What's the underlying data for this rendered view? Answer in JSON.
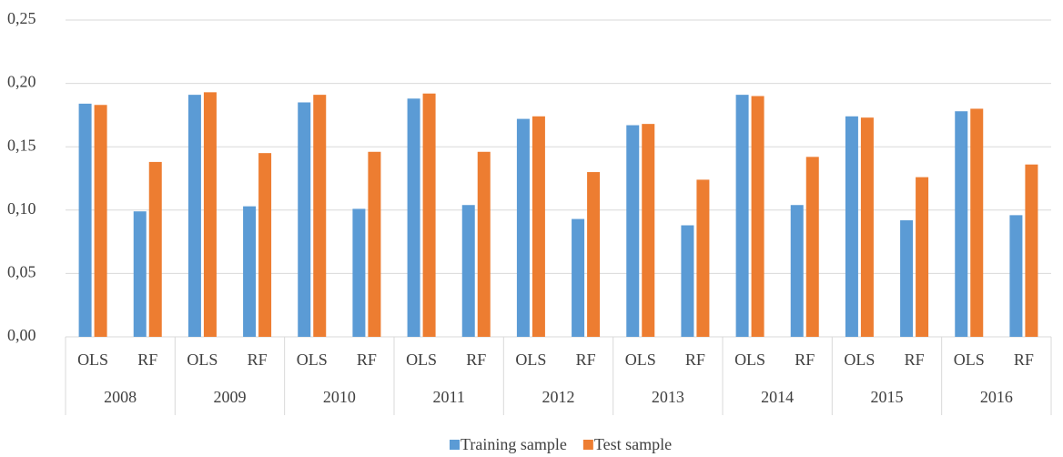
{
  "chart_data": {
    "type": "bar",
    "categories": [
      "OLS",
      "RF",
      "OLS",
      "RF",
      "OLS",
      "RF",
      "OLS",
      "RF",
      "OLS",
      "RF",
      "OLS",
      "RF",
      "OLS",
      "RF",
      "OLS",
      "RF",
      "OLS",
      "RF"
    ],
    "group_labels": [
      "2008",
      "2009",
      "2010",
      "2011",
      "2012",
      "2013",
      "2014",
      "2015",
      "2016"
    ],
    "series": [
      {
        "name": "Training sample",
        "color": "#5b9bd5",
        "values": [
          0.184,
          0.099,
          0.191,
          0.103,
          0.185,
          0.101,
          0.188,
          0.104,
          0.172,
          0.093,
          0.167,
          0.088,
          0.191,
          0.104,
          0.174,
          0.092,
          0.178,
          0.096
        ]
      },
      {
        "name": "Test sample",
        "color": "#ed7d31",
        "values": [
          0.183,
          0.138,
          0.193,
          0.145,
          0.191,
          0.146,
          0.192,
          0.146,
          0.174,
          0.13,
          0.168,
          0.124,
          0.19,
          0.142,
          0.173,
          0.126,
          0.18,
          0.136
        ]
      }
    ],
    "ylim": [
      0,
      0.25
    ],
    "yticks": [
      {
        "value": 0,
        "label": "0,00"
      },
      {
        "value": 0.05,
        "label": "0,05"
      },
      {
        "value": 0.1,
        "label": "0,10"
      },
      {
        "value": 0.15,
        "label": "0,15"
      },
      {
        "value": 0.2,
        "label": "0,20"
      },
      {
        "value": 0.25,
        "label": "0,25"
      }
    ],
    "grid": true,
    "legend": "bottom"
  }
}
